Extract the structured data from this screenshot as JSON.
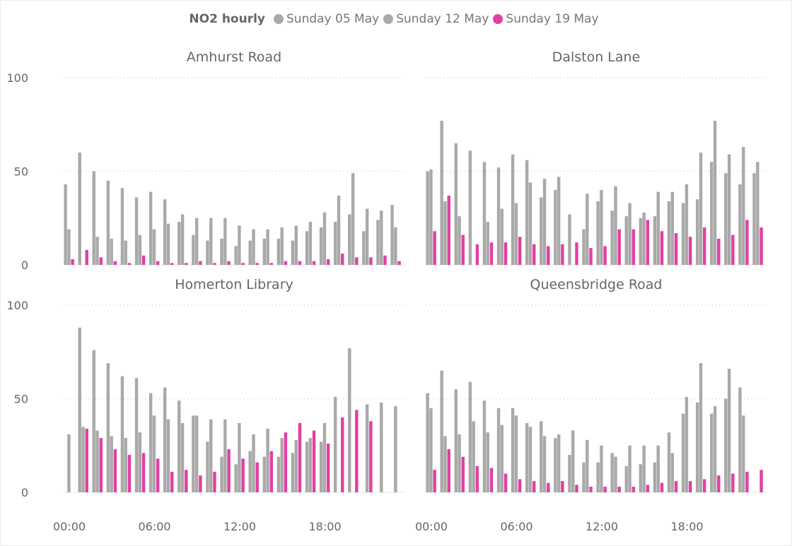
{
  "legend": {
    "title": "NO2 hourly",
    "items": [
      {
        "label": "Sunday 05 May",
        "color": "#a9a9a9"
      },
      {
        "label": "Sunday 12 May",
        "color": "#a9a9a9"
      },
      {
        "label": "Sunday 19 May",
        "color": "#e23fa3"
      }
    ]
  },
  "chart_data": {
    "type": "bar",
    "hours": [
      0,
      1,
      2,
      3,
      4,
      5,
      6,
      7,
      8,
      9,
      10,
      11,
      12,
      13,
      14,
      15,
      16,
      17,
      18,
      19,
      20,
      21,
      22,
      23
    ],
    "x_tick_labels": [
      {
        "hour": 0,
        "label": "00:00"
      },
      {
        "hour": 6,
        "label": "06:00"
      },
      {
        "hour": 12,
        "label": "12:00"
      },
      {
        "hour": 18,
        "label": "18:00"
      }
    ],
    "y_ticks": [
      0,
      50,
      100
    ],
    "ylim": [
      0,
      100
    ],
    "grid": true,
    "legend_position": "top-center",
    "series_names": [
      "Sunday 05 May",
      "Sunday 12 May",
      "Sunday 19 May"
    ],
    "series_colors": [
      "#a9a9a9",
      "#a9a9a9",
      "#e23fa3"
    ],
    "panels": [
      {
        "title": "Amhurst Road",
        "series": [
          {
            "name": "Sunday 05 May",
            "values": [
              43,
              60,
              50,
              45,
              41,
              36,
              39,
              35,
              23,
              16,
              13,
              14,
              10,
              13,
              14,
              14,
              13,
              18,
              20,
              23,
              27,
              18,
              24,
              32
            ]
          },
          {
            "name": "Sunday 12 May",
            "values": [
              19,
              0,
              15,
              14,
              13,
              16,
              19,
              22,
              27,
              25,
              25,
              25,
              21,
              19,
              19,
              20,
              21,
              23,
              28,
              37,
              49,
              30,
              29,
              20
            ]
          },
          {
            "name": "Sunday 19 May",
            "values": [
              3,
              8,
              4,
              2,
              1,
              5,
              2,
              1,
              1,
              2,
              1,
              2,
              1,
              1,
              1,
              2,
              2,
              2,
              3,
              6,
              4,
              4,
              5,
              2
            ]
          }
        ]
      },
      {
        "title": "Dalston Lane",
        "series": [
          {
            "name": "Sunday 05 May",
            "values": [
              50,
              77,
              65,
              61,
              55,
              52,
              59,
              56,
              36,
              40,
              27,
              19,
              34,
              29,
              26,
              25,
              26,
              34,
              33,
              35,
              55,
              49,
              43,
              49
            ]
          },
          {
            "name": "Sunday 12 May",
            "values": [
              51,
              34,
              26,
              0,
              23,
              30,
              33,
              44,
              46,
              47,
              0,
              38,
              40,
              42,
              33,
              28,
              39,
              39,
              43,
              60,
              77,
              59,
              63,
              55
            ]
          },
          {
            "name": "Sunday 19 May",
            "values": [
              18,
              37,
              16,
              11,
              12,
              12,
              15,
              11,
              10,
              11,
              12,
              9,
              10,
              19,
              19,
              24,
              18,
              17,
              15,
              20,
              14,
              16,
              24,
              20
            ]
          }
        ]
      },
      {
        "title": "Homerton Library",
        "series": [
          {
            "name": "Sunday 05 May",
            "values": [
              0,
              88,
              76,
              69,
              62,
              61,
              53,
              56,
              49,
              41,
              27,
              19,
              15,
              22,
              19,
              19,
              21,
              27,
              27,
              51,
              77,
              0,
              0,
              0
            ]
          },
          {
            "name": "Sunday 12 May",
            "values": [
              31,
              35,
              33,
              30,
              29,
              32,
              41,
              39,
              37,
              41,
              39,
              39,
              37,
              31,
              34,
              29,
              28,
              29,
              37,
              0,
              0,
              47,
              48,
              46
            ]
          },
          {
            "name": "Sunday 19 May",
            "values": [
              0,
              34,
              29,
              23,
              20,
              21,
              18,
              11,
              12,
              9,
              11,
              23,
              18,
              16,
              22,
              32,
              37,
              33,
              26,
              40,
              44,
              38,
              0,
              0
            ]
          }
        ]
      },
      {
        "title": "Queensbridge Road",
        "series": [
          {
            "name": "Sunday 05 May",
            "values": [
              53,
              65,
              55,
              59,
              49,
              45,
              45,
              37,
              38,
              29,
              20,
              16,
              16,
              21,
              14,
              15,
              16,
              32,
              42,
              48,
              42,
              50,
              56,
              0
            ]
          },
          {
            "name": "Sunday 12 May",
            "values": [
              45,
              30,
              31,
              38,
              32,
              36,
              41,
              35,
              30,
              31,
              33,
              28,
              25,
              19,
              25,
              25,
              25,
              21,
              51,
              69,
              46,
              66,
              41,
              0
            ]
          },
          {
            "name": "Sunday 19 May",
            "values": [
              12,
              23,
              19,
              14,
              13,
              10,
              7,
              6,
              5,
              6,
              4,
              3,
              3,
              3,
              3,
              4,
              5,
              6,
              6,
              7,
              9,
              10,
              11,
              12
            ]
          }
        ]
      }
    ]
  }
}
